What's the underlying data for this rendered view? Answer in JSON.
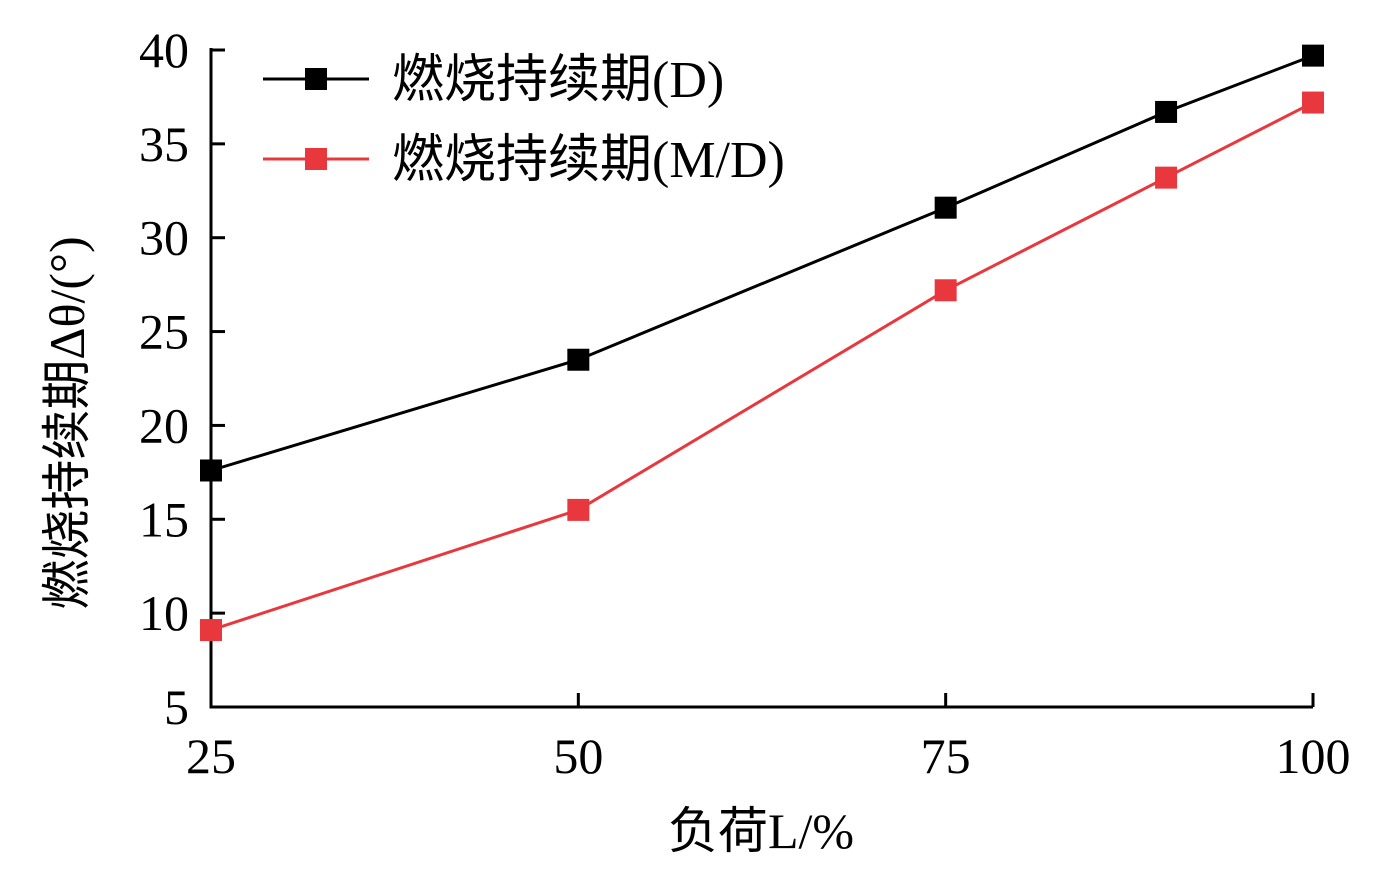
{
  "chart_data": {
    "type": "line",
    "x": [
      25,
      50,
      75,
      90,
      100
    ],
    "series": [
      {
        "name": "燃烧持续期(D)",
        "color": "#000000",
        "marker": "square",
        "values": [
          17.6,
          23.5,
          31.6,
          36.7,
          39.7
        ]
      },
      {
        "name": "燃烧持续期(M/D)",
        "color": "#e8383d",
        "marker": "square",
        "values": [
          9.1,
          15.5,
          27.2,
          33.2,
          37.2
        ]
      }
    ],
    "xlabel": "负荷L/%",
    "ylabel": "燃烧持续期Δθ/(°)",
    "xlim": [
      25,
      100
    ],
    "ylim": [
      5,
      40
    ],
    "xticks": [
      25,
      50,
      75,
      100
    ],
    "xtick_labels": [
      "25",
      "50",
      "75",
      "100"
    ],
    "yticks": [
      5,
      10,
      15,
      20,
      25,
      30,
      35,
      40
    ],
    "ytick_labels": [
      "5",
      "10",
      "15",
      "20",
      "25",
      "30",
      "35",
      "40"
    ],
    "grid": false,
    "legend_position": "top-left"
  }
}
